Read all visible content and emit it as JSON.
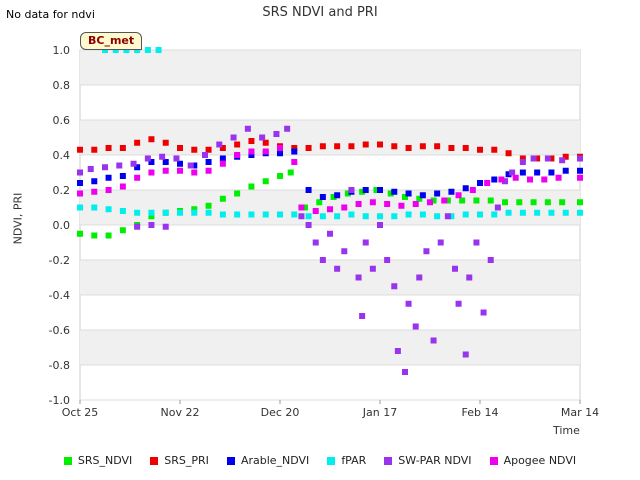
{
  "note": "No data for ndvi",
  "badge": "BC_met",
  "chart_data": {
    "type": "scatter",
    "title": "SRS NDVI and PRI",
    "xlabel": "Time",
    "ylabel": "NDVI, PRI",
    "ylim": [
      -1.0,
      1.0
    ],
    "yticks": [
      "-1.0",
      "-0.8",
      "-0.6",
      "-0.4",
      "-0.2",
      "0.0",
      "0.2",
      "0.4",
      "0.6",
      "0.8",
      "1.0"
    ],
    "xticks": [
      "Oct 25",
      "Nov 22",
      "Dec 20",
      "Jan 17",
      "Feb 14",
      "Mar 14"
    ],
    "xlim": [
      "Oct 25",
      "Mar 14"
    ],
    "grid": true,
    "legend_position": "bottom",
    "series": [
      {
        "name": "SRS_NDVI",
        "color": "#00ee00",
        "points": [
          [
            "Oct 25",
            -0.05
          ],
          [
            "Oct 29",
            -0.06
          ],
          [
            "Nov 2",
            -0.06
          ],
          [
            "Nov 6",
            -0.03
          ],
          [
            "Nov 10",
            0.0
          ],
          [
            "Nov 14",
            0.05
          ],
          [
            "Nov 18",
            0.07
          ],
          [
            "Nov 22",
            0.08
          ],
          [
            "Nov 26",
            0.09
          ],
          [
            "Nov 30",
            0.11
          ],
          [
            "Dec 4",
            0.15
          ],
          [
            "Dec 8",
            0.18
          ],
          [
            "Dec 12",
            0.22
          ],
          [
            "Dec 16",
            0.25
          ],
          [
            "Dec 20",
            0.28
          ],
          [
            "Dec 23",
            0.3
          ],
          [
            "Dec 27",
            0.1
          ],
          [
            "Dec 31",
            0.13
          ],
          [
            "Jan 4",
            0.16
          ],
          [
            "Jan 8",
            0.18
          ],
          [
            "Jan 12",
            0.19
          ],
          [
            "Jan 16",
            0.2
          ],
          [
            "Jan 20",
            0.18
          ],
          [
            "Jan 24",
            0.16
          ],
          [
            "Jan 28",
            0.15
          ],
          [
            "Feb 1",
            0.14
          ],
          [
            "Feb 5",
            0.14
          ],
          [
            "Feb 9",
            0.14
          ],
          [
            "Feb 13",
            0.14
          ],
          [
            "Feb 17",
            0.14
          ],
          [
            "Feb 21",
            0.13
          ],
          [
            "Feb 25",
            0.13
          ],
          [
            "Mar 1",
            0.13
          ],
          [
            "Mar 5",
            0.13
          ],
          [
            "Mar 9",
            0.13
          ],
          [
            "Mar 14",
            0.13
          ]
        ]
      },
      {
        "name": "SRS_PRI",
        "color": "#ee0000",
        "points": [
          [
            "Oct 25",
            0.43
          ],
          [
            "Oct 29",
            0.43
          ],
          [
            "Nov 2",
            0.44
          ],
          [
            "Nov 6",
            0.44
          ],
          [
            "Nov 10",
            0.47
          ],
          [
            "Nov 14",
            0.49
          ],
          [
            "Nov 18",
            0.47
          ],
          [
            "Nov 22",
            0.44
          ],
          [
            "Nov 26",
            0.43
          ],
          [
            "Nov 30",
            0.43
          ],
          [
            "Dec 4",
            0.44
          ],
          [
            "Dec 8",
            0.46
          ],
          [
            "Dec 12",
            0.48
          ],
          [
            "Dec 16",
            0.47
          ],
          [
            "Dec 20",
            0.45
          ],
          [
            "Dec 24",
            0.44
          ],
          [
            "Dec 28",
            0.44
          ],
          [
            "Jan 1",
            0.45
          ],
          [
            "Jan 5",
            0.45
          ],
          [
            "Jan 9",
            0.45
          ],
          [
            "Jan 13",
            0.46
          ],
          [
            "Jan 17",
            0.46
          ],
          [
            "Jan 21",
            0.45
          ],
          [
            "Jan 25",
            0.44
          ],
          [
            "Jan 29",
            0.45
          ],
          [
            "Feb 2",
            0.45
          ],
          [
            "Feb 6",
            0.44
          ],
          [
            "Feb 10",
            0.44
          ],
          [
            "Feb 14",
            0.43
          ],
          [
            "Feb 18",
            0.43
          ],
          [
            "Feb 22",
            0.41
          ],
          [
            "Feb 26",
            0.38
          ],
          [
            "Mar 2",
            0.38
          ],
          [
            "Mar 6",
            0.38
          ],
          [
            "Mar 10",
            0.39
          ],
          [
            "Mar 14",
            0.39
          ]
        ]
      },
      {
        "name": "Arable_NDVI",
        "color": "#0000ee",
        "points": [
          [
            "Oct 25",
            0.24
          ],
          [
            "Oct 29",
            0.25
          ],
          [
            "Nov 2",
            0.27
          ],
          [
            "Nov 6",
            0.28
          ],
          [
            "Nov 10",
            0.33
          ],
          [
            "Nov 14",
            0.36
          ],
          [
            "Nov 18",
            0.36
          ],
          [
            "Nov 22",
            0.35
          ],
          [
            "Nov 26",
            0.34
          ],
          [
            "Nov 30",
            0.36
          ],
          [
            "Dec 4",
            0.38
          ],
          [
            "Dec 8",
            0.39
          ],
          [
            "Dec 12",
            0.4
          ],
          [
            "Dec 16",
            0.41
          ],
          [
            "Dec 20",
            0.41
          ],
          [
            "Dec 24",
            0.42
          ],
          [
            "Dec 28",
            0.2
          ],
          [
            "Jan 1",
            0.16
          ],
          [
            "Jan 5",
            0.17
          ],
          [
            "Jan 9",
            0.19
          ],
          [
            "Jan 13",
            0.2
          ],
          [
            "Jan 17",
            0.2
          ],
          [
            "Jan 21",
            0.19
          ],
          [
            "Jan 25",
            0.18
          ],
          [
            "Jan 29",
            0.17
          ],
          [
            "Feb 2",
            0.18
          ],
          [
            "Feb 6",
            0.19
          ],
          [
            "Feb 10",
            0.21
          ],
          [
            "Feb 14",
            0.24
          ],
          [
            "Feb 18",
            0.26
          ],
          [
            "Feb 22",
            0.29
          ],
          [
            "Feb 26",
            0.3
          ],
          [
            "Mar 2",
            0.3
          ],
          [
            "Mar 6",
            0.3
          ],
          [
            "Mar 10",
            0.31
          ],
          [
            "Mar 14",
            0.31
          ]
        ]
      },
      {
        "name": "fPAR",
        "color": "#00eeee",
        "points": [
          [
            "Oct 25",
            0.1
          ],
          [
            "Oct 29",
            0.1
          ],
          [
            "Nov 2",
            0.09
          ],
          [
            "Nov 6",
            0.08
          ],
          [
            "Nov 10",
            0.07
          ],
          [
            "Nov 14",
            0.07
          ],
          [
            "Nov 18",
            0.07
          ],
          [
            "Nov 22",
            0.07
          ],
          [
            "Nov 26",
            0.07
          ],
          [
            "Nov 30",
            0.07
          ],
          [
            "Dec 4",
            0.06
          ],
          [
            "Dec 8",
            0.06
          ],
          [
            "Dec 12",
            0.06
          ],
          [
            "Dec 16",
            0.06
          ],
          [
            "Dec 20",
            0.06
          ],
          [
            "Dec 24",
            0.06
          ],
          [
            "Dec 28",
            0.05
          ],
          [
            "Jan 1",
            0.05
          ],
          [
            "Jan 5",
            0.05
          ],
          [
            "Jan 9",
            0.06
          ],
          [
            "Jan 13",
            0.05
          ],
          [
            "Jan 17",
            0.05
          ],
          [
            "Jan 21",
            0.05
          ],
          [
            "Jan 25",
            0.06
          ],
          [
            "Jan 29",
            0.06
          ],
          [
            "Feb 2",
            0.05
          ],
          [
            "Feb 6",
            0.05
          ],
          [
            "Feb 10",
            0.06
          ],
          [
            "Feb 14",
            0.06
          ],
          [
            "Feb 18",
            0.06
          ],
          [
            "Feb 22",
            0.07
          ],
          [
            "Feb 26",
            0.07
          ],
          [
            "Mar 2",
            0.07
          ],
          [
            "Mar 6",
            0.07
          ],
          [
            "Mar 10",
            0.07
          ],
          [
            "Mar 14",
            0.07
          ],
          [
            "Nov 1",
            1.0
          ],
          [
            "Nov 4",
            1.0
          ],
          [
            "Nov 7",
            1.0
          ],
          [
            "Nov 10",
            1.0
          ],
          [
            "Nov 13",
            1.0
          ],
          [
            "Nov 16",
            1.0
          ]
        ]
      },
      {
        "name": "SW-PAR NDVI",
        "color": "#9933ee",
        "points": [
          [
            "Oct 25",
            0.3
          ],
          [
            "Oct 28",
            0.32
          ],
          [
            "Nov 1",
            0.33
          ],
          [
            "Nov 5",
            0.34
          ],
          [
            "Nov 9",
            0.35
          ],
          [
            "Nov 13",
            0.38
          ],
          [
            "Nov 17",
            0.39
          ],
          [
            "Nov 21",
            0.38
          ],
          [
            "Nov 25",
            0.34
          ],
          [
            "Nov 29",
            0.4
          ],
          [
            "Dec 3",
            0.46
          ],
          [
            "Dec 7",
            0.5
          ],
          [
            "Dec 11",
            0.55
          ],
          [
            "Dec 15",
            0.5
          ],
          [
            "Dec 19",
            0.52
          ],
          [
            "Dec 22",
            0.55
          ],
          [
            "Nov 10",
            -0.01
          ],
          [
            "Nov 14",
            0.0
          ],
          [
            "Nov 18",
            -0.01
          ],
          [
            "Dec 26",
            0.05
          ],
          [
            "Dec 28",
            0.0
          ],
          [
            "Dec 30",
            -0.1
          ],
          [
            "Jan 1",
            -0.2
          ],
          [
            "Jan 3",
            -0.05
          ],
          [
            "Jan 5",
            -0.25
          ],
          [
            "Jan 7",
            -0.15
          ],
          [
            "Jan 9",
            0.2
          ],
          [
            "Jan 11",
            -0.3
          ],
          [
            "Jan 12",
            -0.52
          ],
          [
            "Jan 13",
            -0.1
          ],
          [
            "Jan 15",
            -0.25
          ],
          [
            "Jan 17",
            0.0
          ],
          [
            "Jan 19",
            -0.2
          ],
          [
            "Jan 21",
            -0.35
          ],
          [
            "Jan 22",
            -0.72
          ],
          [
            "Jan 24",
            -0.84
          ],
          [
            "Jan 25",
            -0.45
          ],
          [
            "Jan 27",
            -0.58
          ],
          [
            "Jan 28",
            -0.3
          ],
          [
            "Jan 30",
            -0.15
          ],
          [
            "Feb 1",
            -0.66
          ],
          [
            "Feb 3",
            -0.1
          ],
          [
            "Feb 5",
            0.05
          ],
          [
            "Feb 7",
            -0.25
          ],
          [
            "Feb 8",
            -0.45
          ],
          [
            "Feb 10",
            -0.74
          ],
          [
            "Feb 11",
            -0.3
          ],
          [
            "Feb 13",
            -0.1
          ],
          [
            "Feb 15",
            -0.5
          ],
          [
            "Feb 17",
            -0.2
          ],
          [
            "Feb 19",
            0.1
          ],
          [
            "Feb 21",
            0.25
          ],
          [
            "Feb 23",
            0.3
          ],
          [
            "Feb 26",
            0.36
          ],
          [
            "Mar 1",
            0.38
          ],
          [
            "Mar 5",
            0.38
          ],
          [
            "Mar 9",
            0.37
          ],
          [
            "Mar 14",
            0.38
          ]
        ]
      },
      {
        "name": "Apogee NDVI",
        "color": "#ee00ee",
        "points": [
          [
            "Oct 25",
            0.18
          ],
          [
            "Oct 29",
            0.19
          ],
          [
            "Nov 2",
            0.2
          ],
          [
            "Nov 6",
            0.22
          ],
          [
            "Nov 10",
            0.27
          ],
          [
            "Nov 14",
            0.3
          ],
          [
            "Nov 18",
            0.31
          ],
          [
            "Nov 22",
            0.31
          ],
          [
            "Nov 26",
            0.3
          ],
          [
            "Nov 30",
            0.31
          ],
          [
            "Dec 4",
            0.35
          ],
          [
            "Dec 8",
            0.4
          ],
          [
            "Dec 12",
            0.42
          ],
          [
            "Dec 16",
            0.42
          ],
          [
            "Dec 20",
            0.44
          ],
          [
            "Dec 24",
            0.36
          ],
          [
            "Dec 26",
            0.1
          ],
          [
            "Dec 30",
            0.08
          ],
          [
            "Jan 3",
            0.09
          ],
          [
            "Jan 7",
            0.1
          ],
          [
            "Jan 11",
            0.12
          ],
          [
            "Jan 15",
            0.13
          ],
          [
            "Jan 19",
            0.12
          ],
          [
            "Jan 23",
            0.11
          ],
          [
            "Jan 27",
            0.12
          ],
          [
            "Jan 31",
            0.13
          ],
          [
            "Feb 4",
            0.14
          ],
          [
            "Feb 8",
            0.17
          ],
          [
            "Feb 12",
            0.2
          ],
          [
            "Feb 16",
            0.24
          ],
          [
            "Feb 20",
            0.26
          ],
          [
            "Feb 24",
            0.27
          ],
          [
            "Feb 28",
            0.26
          ],
          [
            "Mar 4",
            0.26
          ],
          [
            "Mar 8",
            0.27
          ],
          [
            "Mar 14",
            0.27
          ]
        ]
      }
    ]
  }
}
